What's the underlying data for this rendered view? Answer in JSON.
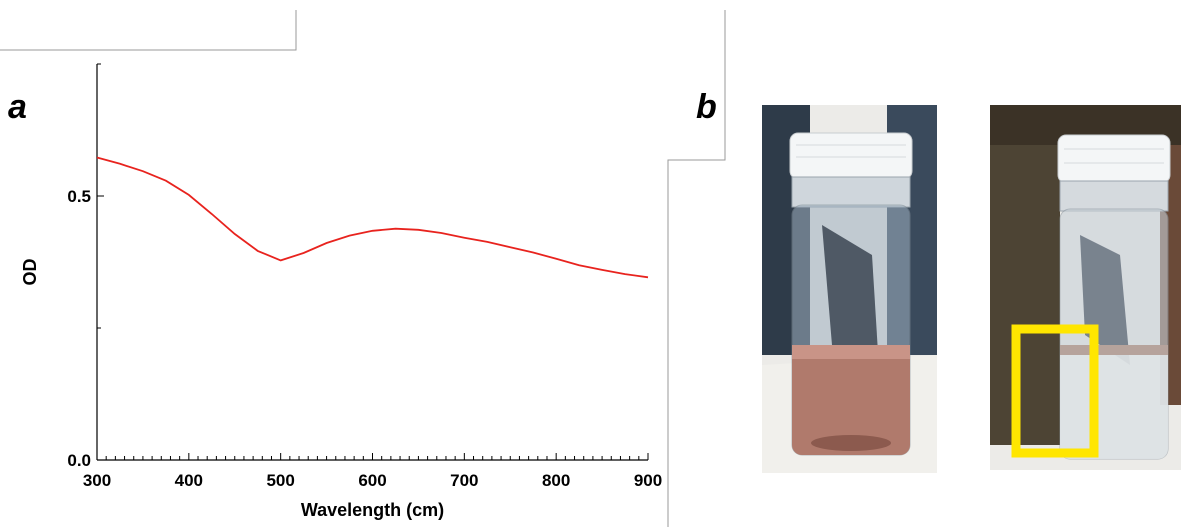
{
  "panels": {
    "a": "a",
    "b": "b"
  },
  "chart_data": {
    "type": "line",
    "xlabel": "Wavelength (cm)",
    "ylabel": "OD",
    "xlim": [
      300,
      900
    ],
    "ylim": [
      0.0,
      0.75
    ],
    "x_ticks": [
      300,
      400,
      500,
      600,
      700,
      800,
      900
    ],
    "x_tick_labels": [
      "300",
      "400",
      "500",
      "600",
      "700",
      "800",
      "900"
    ],
    "y_ticks": [
      0.0,
      0.5
    ],
    "y_tick_labels": [
      "0.0",
      "0.5"
    ],
    "grid": false,
    "series": [
      {
        "color": "#e8231e",
        "x": [
          300,
          325,
          350,
          375,
          400,
          425,
          450,
          475,
          500,
          525,
          550,
          575,
          600,
          625,
          650,
          675,
          700,
          725,
          750,
          775,
          800,
          825,
          850,
          875,
          900
        ],
        "y": [
          0.573,
          0.561,
          0.547,
          0.529,
          0.502,
          0.466,
          0.428,
          0.396,
          0.378,
          0.392,
          0.411,
          0.425,
          0.434,
          0.438,
          0.436,
          0.43,
          0.421,
          0.413,
          0.403,
          0.393,
          0.381,
          0.369,
          0.36,
          0.352,
          0.346
        ]
      }
    ]
  },
  "photos": {
    "left_vial": {
      "liquid_color": "#b07a6c",
      "background_color": "#2a3a4a"
    },
    "right_vial": {
      "liquid_color": "#d9dde0",
      "highlight_box_color": "#ffe600",
      "background_color": "#4a4030"
    }
  }
}
